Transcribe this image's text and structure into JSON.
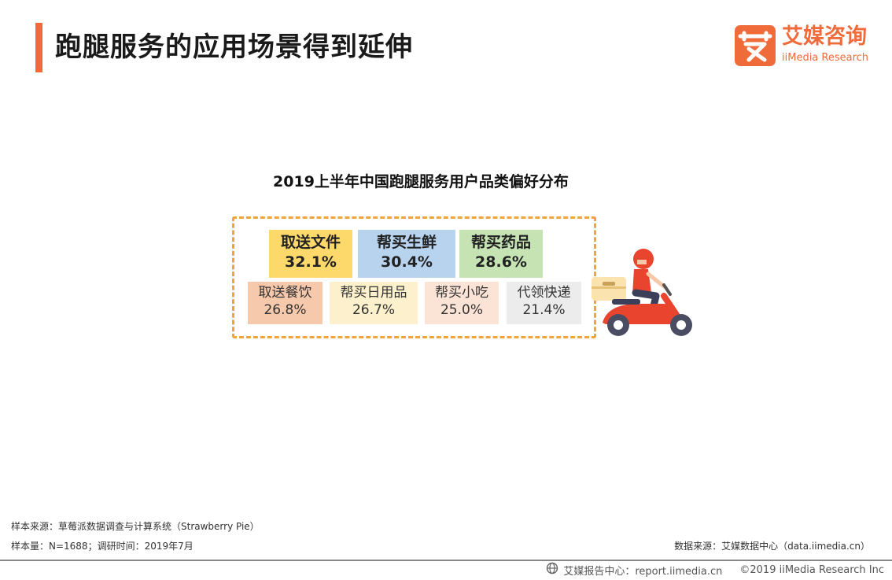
{
  "header": {
    "title": "跑腿服务的应用场景得到延伸",
    "logo_cn": "艾媒咨询",
    "logo_en": "iiMedia Research"
  },
  "chart_data": {
    "type": "table",
    "title": "2019上半年中国跑腿服务用户品类偏好分布",
    "unit": "%",
    "categories": [
      "取送文件",
      "帮买生鲜",
      "帮买药品",
      "取送餐饮",
      "帮买日用品",
      "帮买小吃",
      "代领快递"
    ],
    "values": [
      32.1,
      30.4,
      28.6,
      26.8,
      26.7,
      25.0,
      21.4
    ],
    "value_labels": [
      "32.1%",
      "30.4%",
      "28.6%",
      "26.8%",
      "26.7%",
      "25.0%",
      "21.4%"
    ],
    "colors": [
      "#fdd96b",
      "#b7d3ee",
      "#c6e3b3",
      "#f6c9ac",
      "#fdf0cc",
      "#fbe4d6",
      "#ececec"
    ]
  },
  "footer": {
    "source": "样本来源：草莓派数据调查与计算系统（Strawberry Pie）",
    "sample": "样本量：N=1688；调研时间：2019年7月",
    "data_source": "数据来源：艾媒数据中心（data.iimedia.cn）",
    "report_center": "艾媒报告中心：report.iimedia.cn",
    "copyright": "©2019  iiMedia Research  Inc"
  },
  "colors": {
    "accent": "#f06b3a",
    "frame": "#f0a43a"
  },
  "icons": {
    "logo": "iimedia-logo-icon",
    "scooter": "delivery-scooter-icon",
    "globe": "globe-icon"
  }
}
